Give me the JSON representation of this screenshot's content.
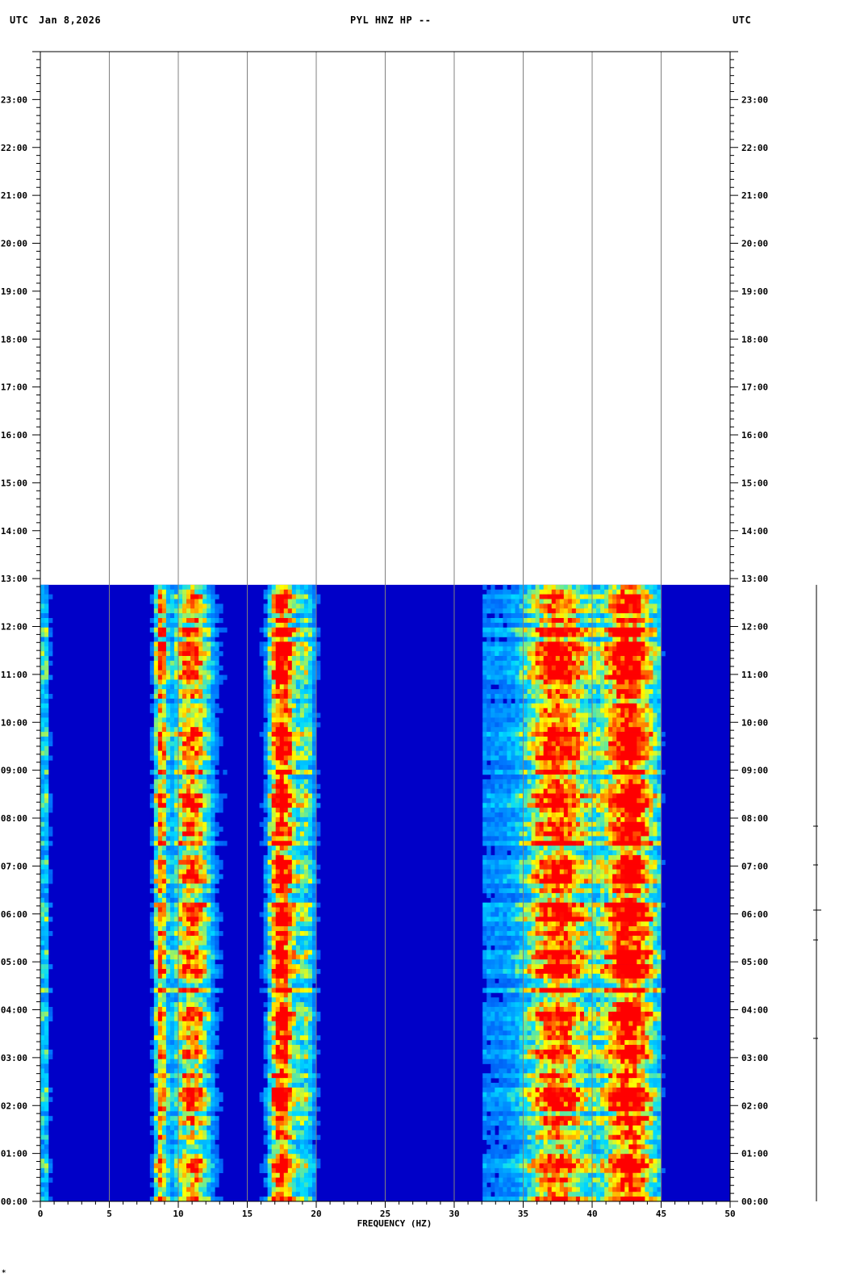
{
  "header": {
    "left_tz": "UTC",
    "date": "Jan 8,2026",
    "title": "PYL HNZ HP --",
    "right_tz": "UTC"
  },
  "corner_mark": "*",
  "colors": {
    "background": "#ffffff",
    "grid": "#808080",
    "base": "#0000c8",
    "mid": "#00c8ff",
    "high": "#ffff00",
    "peak": "#ff0000"
  },
  "chart_data": {
    "type": "heatmap",
    "title": "PYL HNZ HP --",
    "xlabel": "FREQUENCY (HZ)",
    "ylabel": "",
    "xlim": [
      0,
      50
    ],
    "x_ticks": [
      0,
      5,
      10,
      15,
      20,
      25,
      30,
      35,
      40,
      45,
      50
    ],
    "x_tick_labels": [
      "0",
      "5",
      "10",
      "15",
      "20",
      "25",
      "30",
      "35",
      "40",
      "45",
      "50"
    ],
    "ylim_hours": [
      0,
      24
    ],
    "y_tick_labels": [
      "00:00",
      "01:00",
      "02:00",
      "03:00",
      "04:00",
      "05:00",
      "06:00",
      "07:00",
      "08:00",
      "09:00",
      "10:00",
      "11:00",
      "12:00",
      "13:00",
      "14:00",
      "15:00",
      "16:00",
      "17:00",
      "18:00",
      "19:00",
      "20:00",
      "21:00",
      "22:00",
      "23:00"
    ],
    "data_end_hour": 12.87,
    "energy_bands_hz": [
      {
        "center": 0.3,
        "width": 0.4,
        "intensity": 0.45
      },
      {
        "center": 8.7,
        "width": 0.5,
        "intensity": 0.65
      },
      {
        "center": 11.0,
        "width": 1.6,
        "intensity": 0.75
      },
      {
        "center": 17.5,
        "width": 1.0,
        "intensity": 0.95
      },
      {
        "center": 19.3,
        "width": 0.8,
        "intensity": 0.45
      },
      {
        "center": 37.5,
        "width": 2.2,
        "intensity": 0.6
      },
      {
        "center": 42.7,
        "width": 1.8,
        "intensity": 0.7
      }
    ]
  }
}
